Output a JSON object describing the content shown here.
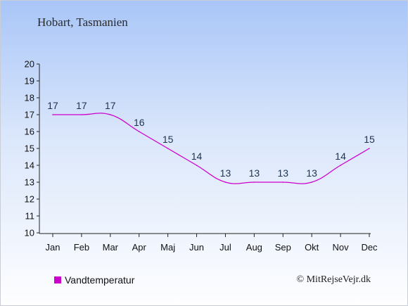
{
  "header": {
    "title": "Hobart, Tasmanien"
  },
  "legend": {
    "label": "Vandtemperatur",
    "color": "#cc00cc"
  },
  "footer": {
    "copyright": "© MitRejseVejr.dk"
  },
  "chart_data": {
    "type": "line",
    "title": "Hobart, Tasmanien",
    "categories": [
      "Jan",
      "Feb",
      "Mar",
      "Apr",
      "Maj",
      "Jun",
      "Jul",
      "Aug",
      "Sep",
      "Okt",
      "Nov",
      "Dec"
    ],
    "series": [
      {
        "name": "Vandtemperatur",
        "color": "#cc00cc",
        "values": [
          17,
          17,
          17,
          16,
          15,
          14,
          13,
          13,
          13,
          13,
          14,
          15
        ]
      }
    ],
    "ylim": [
      10,
      20
    ],
    "yticks": [
      10,
      11,
      12,
      13,
      14,
      15,
      16,
      17,
      18,
      19,
      20
    ],
    "xlabel": "",
    "ylabel": "",
    "grid": false,
    "legend_position": "bottom-left",
    "data_labels": true
  }
}
